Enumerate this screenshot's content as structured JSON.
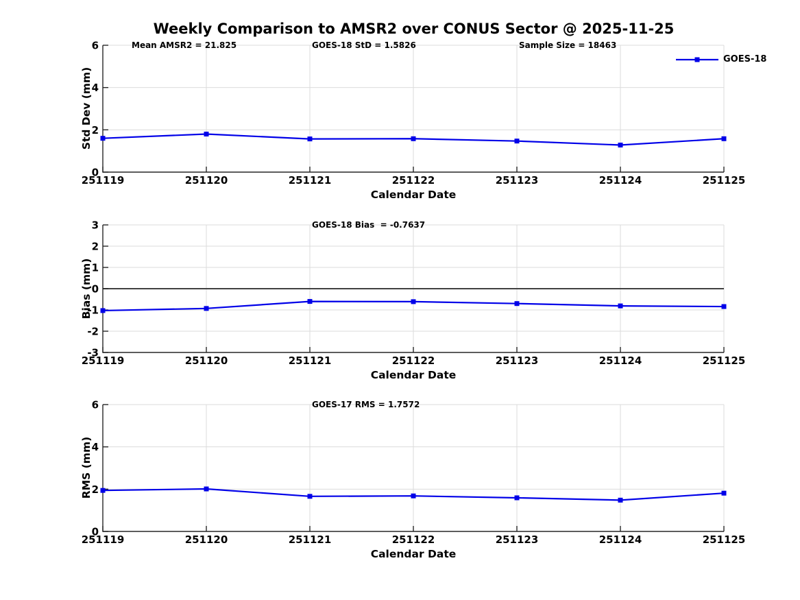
{
  "figure": {
    "title": "Weekly Comparison to AMSR2 over CONUS Sector @ 2025-11-25"
  },
  "legend": {
    "label": "GOES-18"
  },
  "chart_data": {
    "type": "line",
    "series_name": "GOES-18",
    "x_categories": [
      "251119",
      "251120",
      "251121",
      "251122",
      "251123",
      "251124",
      "251125"
    ],
    "xlabel": "Calendar Date",
    "grid": true,
    "legend_position": "top-right-outside",
    "colors": {
      "line": "#0000E8",
      "grid": "#DBDBDB",
      "axis": "#262626",
      "zero_line": "#404040",
      "text": "#000000",
      "background": "#FFFFFF"
    },
    "subplots": [
      {
        "ylabel": "Std Dev (mm)",
        "ylim": [
          0,
          6
        ],
        "yticks": [
          0,
          2,
          4,
          6
        ],
        "values": [
          1.6,
          1.8,
          1.57,
          1.58,
          1.47,
          1.28,
          1.58
        ],
        "annotations": [
          {
            "text": "Mean AMSR2 = 21.825"
          },
          {
            "text": "GOES-18 StD = 1.5826"
          },
          {
            "text": "Sample Size = 18463"
          }
        ]
      },
      {
        "ylabel": "Bias (mm)",
        "ylim": [
          -3,
          3
        ],
        "yticks": [
          -3,
          -2,
          -1,
          0,
          1,
          2,
          3
        ],
        "zero_line": true,
        "values": [
          -1.03,
          -0.93,
          -0.6,
          -0.61,
          -0.7,
          -0.81,
          -0.84
        ],
        "annotations": [
          {
            "text": "GOES-18 Bias  = -0.7637"
          }
        ]
      },
      {
        "ylabel": "RMS (mm)",
        "ylim": [
          0,
          6
        ],
        "yticks": [
          0,
          2,
          4,
          6
        ],
        "values": [
          1.94,
          2.01,
          1.66,
          1.68,
          1.59,
          1.48,
          1.81
        ],
        "annotations": [
          {
            "text": "GOES-17 RMS = 1.7572"
          }
        ]
      }
    ]
  }
}
